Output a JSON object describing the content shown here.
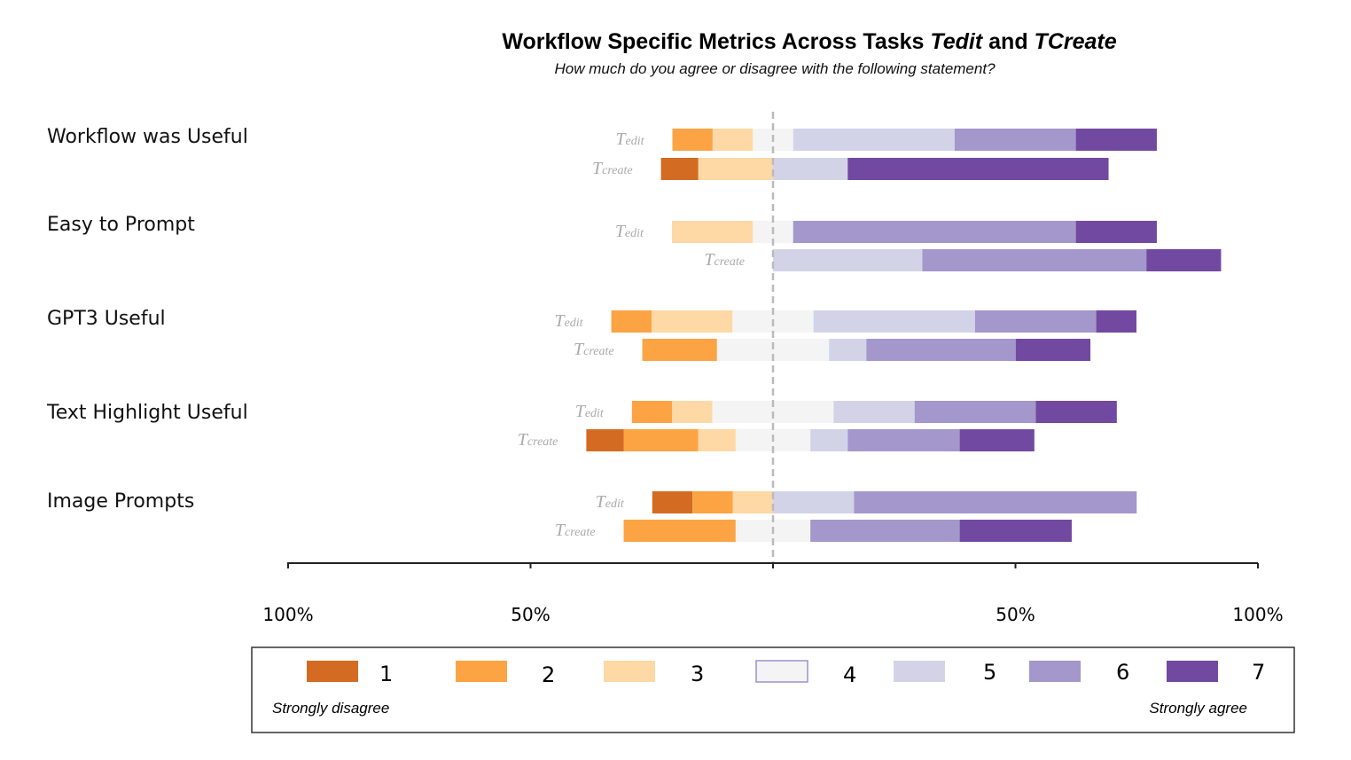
{
  "chart_data": {
    "type": "bar",
    "subtype": "diverging-stacked-likert",
    "title": {
      "prefix": "Workflow Specific Metrics Across Tasks ",
      "task_a": "Tedit",
      "joiner": " and ",
      "task_b": "TCreate"
    },
    "subtitle": "How much do you agree or disagree with the following statement?",
    "questions": [
      {
        "label": "Workflow was Useful",
        "rows": [
          {
            "task_main": "T",
            "task_sub": "edit",
            "values": [
              0,
              8.3,
              8.3,
              8.3,
              33.3,
              25,
              16.7
            ]
          },
          {
            "task_main": "T",
            "task_sub": "create",
            "values": [
              7.7,
              0,
              15.4,
              0,
              15.4,
              0,
              53.8
            ]
          }
        ]
      },
      {
        "label": "Easy to Prompt",
        "rows": [
          {
            "task_main": "T",
            "task_sub": "edit",
            "values": [
              0,
              0,
              16.7,
              8.3,
              0,
              58.3,
              16.7
            ]
          },
          {
            "task_main": "T",
            "task_sub": "create",
            "values": [
              0,
              0,
              0,
              0,
              30.8,
              46.2,
              15.4
            ]
          }
        ]
      },
      {
        "label": "GPT3 Useful",
        "rows": [
          {
            "task_main": "T",
            "task_sub": "edit",
            "values": [
              0,
              8.3,
              16.7,
              16.7,
              33.3,
              25,
              8.3
            ]
          },
          {
            "task_main": "T",
            "task_sub": "create",
            "values": [
              0,
              15.4,
              0,
              23.1,
              7.7,
              30.8,
              15.4
            ]
          }
        ]
      },
      {
        "label": "Text Highlight Useful",
        "rows": [
          {
            "task_main": "T",
            "task_sub": "edit",
            "values": [
              0,
              8.3,
              8.3,
              25,
              16.7,
              25,
              16.7
            ]
          },
          {
            "task_main": "T",
            "task_sub": "create",
            "values": [
              7.7,
              15.4,
              7.7,
              15.4,
              7.7,
              23.1,
              15.4
            ]
          }
        ]
      },
      {
        "label": "Image Prompts",
        "rows": [
          {
            "task_main": "T",
            "task_sub": "edit",
            "values": [
              8.3,
              8.3,
              8.3,
              0,
              16.7,
              58.3,
              0
            ]
          },
          {
            "task_main": "T",
            "task_sub": "create",
            "values": [
              0,
              23.1,
              0,
              15.4,
              0,
              30.8,
              23.1
            ]
          }
        ]
      }
    ],
    "x_axis": {
      "range": [
        -100,
        100
      ],
      "ticks": [
        -100,
        -50,
        0,
        50,
        100
      ],
      "tick_labels": [
        "100%",
        "50%",
        "",
        "50%",
        "100%"
      ]
    },
    "legend": {
      "placement": "bottom",
      "levels": [
        "1",
        "2",
        "3",
        "4",
        "5",
        "6",
        "7"
      ],
      "colors": [
        "#d36b22",
        "#fca443",
        "#fed8a5",
        "#f4f4f4",
        "#d3d3e8",
        "#a497cb",
        "#7249a0"
      ],
      "neutral_border": "#9a92d0",
      "left_note": "Strongly disagree",
      "right_note": "Strongly agree"
    },
    "center_line_color": "#bbbbbb"
  }
}
